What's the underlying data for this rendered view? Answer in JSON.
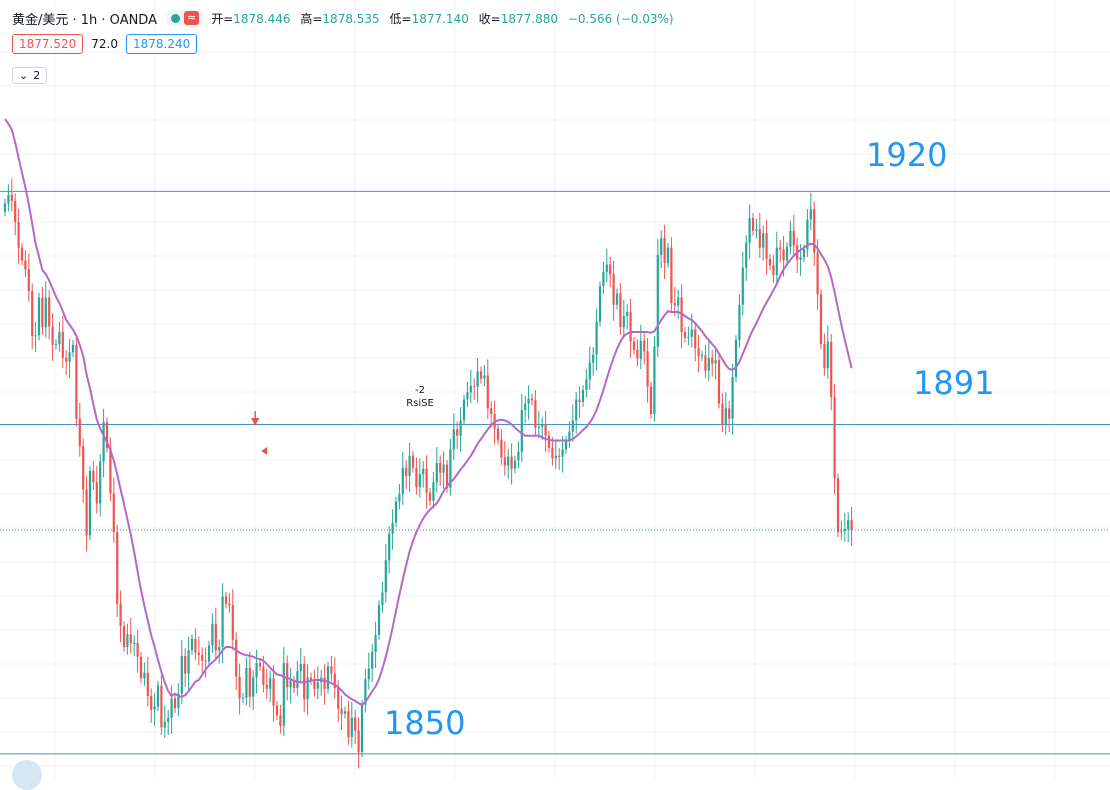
{
  "header": {
    "title": "黄金/美元 · 1h · OANDA",
    "ohlc": [
      {
        "key": "开=",
        "value": "1878.446"
      },
      {
        "key": "高=",
        "value": "1878.535"
      },
      {
        "key": "低=",
        "value": "1877.140"
      },
      {
        "key": "收=",
        "value": "1877.880"
      }
    ],
    "change": "−0.566 (−0.03%)",
    "bid": "1877.520",
    "spread": "72.0",
    "ask": "1878.240",
    "indicator_count": "2",
    "status_icon": "market-open-dot",
    "wave_icon": "≈"
  },
  "colors": {
    "up": "#26a69a",
    "down": "#ef5350",
    "ma": "#b667c9",
    "level": "#2196f3",
    "current_price_line": "#26a69a"
  },
  "chart_data": {
    "type": "candlestick",
    "symbol": "XAU/USD",
    "timeframe": "1h",
    "source": "OANDA",
    "y_range": [
      1847,
      1932
    ],
    "levels": [
      {
        "value": 1920,
        "label": "1920"
      },
      {
        "value": 1891,
        "label": "1891"
      },
      {
        "value": 1850,
        "label": "1850"
      }
    ],
    "current_price": 1877.88,
    "signal": {
      "index": 73,
      "text1": "-2",
      "text2": "RsiSE"
    },
    "candles_close": [
      1918.5,
      1919.6,
      1918.8,
      1916.2,
      1913.0,
      1911.4,
      1910.3,
      1907.6,
      1902.0,
      1902.1,
      1906.8,
      1903.1,
      1906.8,
      1903.2,
      1900.9,
      1901.0,
      1902.5,
      1899.3,
      1898.8,
      1900.0,
      1900.9,
      1891.7,
      1888.3,
      1882.9,
      1877.2,
      1885.2,
      1883.8,
      1881.2,
      1886.4,
      1891.3,
      1888.1,
      1882.4,
      1877.6,
      1868.7,
      1865.9,
      1863.3,
      1864.9,
      1863.8,
      1863.8,
      1862.1,
      1859.4,
      1860.1,
      1857.2,
      1855.5,
      1855.9,
      1858.5,
      1853.3,
      1854.0,
      1854.5,
      1856.9,
      1855.7,
      1857.5,
      1862.2,
      1860.0,
      1862.9,
      1864.3,
      1862.6,
      1862.3,
      1861.6,
      1861.5,
      1863.5,
      1866.2,
      1862.9,
      1863.3,
      1869.6,
      1868.7,
      1868.5,
      1864.2,
      1859.6,
      1856.9,
      1857.0,
      1860.7,
      1857.1,
      1859.5,
      1861.3,
      1860.9,
      1858.6,
      1858.1,
      1859.4,
      1856.0,
      1854.8,
      1853.5,
      1861.3,
      1858.3,
      1859.1,
      1858.2,
      1860.3,
      1861.2,
      1856.8,
      1859.5,
      1859.2,
      1858.1,
      1858.9,
      1859.5,
      1858.1,
      1860.9,
      1860.0,
      1858.2,
      1855.6,
      1855.0,
      1855.3,
      1852.1,
      1854.5,
      1852.9,
      1850.2,
      1856.1,
      1859.3,
      1860.6,
      1862.7,
      1864.8,
      1868.5,
      1870.1,
      1874.1,
      1877.4,
      1878.8,
      1881.4,
      1882.3,
      1885.6,
      1884.6,
      1887.1,
      1885.6,
      1883.2,
      1884.8,
      1885.5,
      1882.5,
      1881.5,
      1883.8,
      1886.2,
      1885.0,
      1886.0,
      1883.1,
      1887.9,
      1890.4,
      1889.6,
      1891.5,
      1894.1,
      1895.0,
      1895.8,
      1895.7,
      1897.6,
      1896.7,
      1897.1,
      1893.0,
      1892.3,
      1890.5,
      1889.1,
      1886.9,
      1885.9,
      1887.0,
      1885.5,
      1886.5,
      1887.6,
      1892.8,
      1893.6,
      1894.2,
      1894.0,
      1890.6,
      1890.7,
      1891.0,
      1889.6,
      1888.1,
      1886.8,
      1887.1,
      1887.0,
      1887.9,
      1889.0,
      1890.1,
      1891.5,
      1894.1,
      1893.8,
      1895.3,
      1896.6,
      1898.7,
      1899.7,
      1903.8,
      1908.2,
      1910.0,
      1910.9,
      1909.7,
      1905.9,
      1907.3,
      1903.1,
      1904.5,
      1905.0,
      1901.3,
      1900.3,
      1899.2,
      1901.4,
      1900.1,
      1895.7,
      1892.3,
      1900.7,
      1912.1,
      1914.2,
      1911.1,
      1913.0,
      1906.1,
      1905.8,
      1906.8,
      1902.5,
      1901.8,
      1901.9,
      1902.8,
      1900.5,
      1899.5,
      1899.6,
      1897.7,
      1899.3,
      1898.6,
      1899.0,
      1893.6,
      1891.0,
      1893.0,
      1891.7,
      1896.9,
      1901.5,
      1905.9,
      1910.5,
      1913.6,
      1916.7,
      1915.1,
      1915.3,
      1913.0,
      1914.8,
      1911.6,
      1910.8,
      1909.6,
      1913.0,
      1912.8,
      1911.4,
      1913.1,
      1915.1,
      1913.3,
      1911.5,
      1911.8,
      1912.8,
      1916.5,
      1917.8,
      1912.4,
      1907.2,
      1901.0,
      1898.0,
      1901.3,
      1894.4,
      1884.3,
      1877.6,
      1877.7,
      1878.0,
      1879.1,
      1877.9
    ],
    "ma_series": [
      1929.0,
      1928.4,
      1927.7,
      1926.1,
      1924.2,
      1922.3,
      1920.5,
      1918.4,
      1916.0,
      1913.5,
      1911.9,
      1910.2,
      1909.7,
      1908.9,
      1907.9,
      1906.9,
      1906.1,
      1905.1,
      1904.0,
      1903.4,
      1902.8,
      1902.0,
      1900.9,
      1899.5,
      1897.2,
      1895.5,
      1893.5,
      1891.6,
      1890.5,
      1889.6,
      1888.8,
      1887.8,
      1886.5,
      1884.8,
      1882.9,
      1881.1,
      1879.2,
      1877.3,
      1875.1,
      1872.7,
      1870.4,
      1868.4,
      1866.6,
      1864.8,
      1863.3,
      1861.7,
      1860.2,
      1858.9,
      1857.8,
      1857.2,
      1857.5,
      1857.2,
      1857.1,
      1857.3,
      1857.8,
      1858.4,
      1859.0,
      1859.2,
      1859.8,
      1860.5,
      1861.0,
      1861.4,
      1861.8,
      1862.3,
      1862.9,
      1863.3,
      1863.3,
      1863.2,
      1862.9,
      1862.6,
      1862.4,
      1862.3,
      1862.2,
      1862.1,
      1861.9,
      1861.8,
      1861.6,
      1861.2,
      1860.7,
      1860.3,
      1859.9,
      1859.8,
      1859.6,
      1859.5,
      1859.3,
      1859.1,
      1859.0,
      1858.9,
      1858.9,
      1859.0,
      1859.1,
      1859.2,
      1859.2,
      1859.2,
      1859.1,
      1859.0,
      1858.8,
      1858.6,
      1858.3,
      1857.9,
      1857.4,
      1857.1,
      1856.8,
      1856.6,
      1856.3,
      1856.1,
      1856.5,
      1857.1,
      1857.8,
      1858.4,
      1859.3,
      1860.6,
      1862.1,
      1863.8,
      1865.7,
      1867.8,
      1869.8,
      1871.7,
      1873.5,
      1875.2,
      1876.5,
      1877.6,
      1878.5,
      1879.3,
      1879.9,
      1880.4,
      1880.8,
      1881.2,
      1881.9,
      1882.7,
      1883.3,
      1883.8,
      1884.2,
      1884.8,
      1885.4,
      1885.9,
      1886.5,
      1887.1,
      1887.8,
      1888.6,
      1889.2,
      1889.8,
      1890.4,
      1890.9,
      1891.3,
      1891.5,
      1891.6,
      1891.5,
      1891.3,
      1891.0,
      1890.6,
      1890.2,
      1889.9,
      1889.6,
      1889.6,
      1889.6,
      1889.6,
      1889.6,
      1889.4,
      1889.2,
      1889.1,
      1889.0,
      1889.0,
      1889.0,
      1889.0,
      1889.0,
      1889.0,
      1889.2,
      1889.5,
      1889.9,
      1890.3,
      1890.7,
      1891.2,
      1891.9,
      1892.8,
      1894.0,
      1895.3,
      1896.7,
      1898.1,
      1899.3,
      1900.4,
      1901.3,
      1902.0,
      1902.3,
      1902.5,
      1902.5,
      1902.5,
      1902.5,
      1902.5,
      1902.5,
      1902.4,
      1902.6,
      1903.3,
      1904.0,
      1904.6,
      1905.1,
      1905.0,
      1905.0,
      1905.0,
      1904.8,
      1904.5,
      1904.2,
      1904.0,
      1903.6,
      1903.1,
      1902.6,
      1902.0,
      1901.5,
      1901.0,
      1900.5,
      1899.8,
      1899.1,
      1898.4,
      1897.9,
      1897.8,
      1898.1,
      1898.8,
      1899.8,
      1900.8,
      1901.9,
      1902.8,
      1903.6,
      1904.5,
      1905.4,
      1906.2,
      1906.9,
      1907.7,
      1908.5,
      1909.5,
      1910.3,
      1910.9,
      1911.5,
      1912.0,
      1912.4,
      1912.7,
      1913.0,
      1913.3,
      1913.5,
      1913.4,
      1912.9,
      1912.2,
      1911.5,
      1910.7,
      1909.3,
      1907.5,
      1905.4,
      1903.4,
      1901.5,
      1899.8,
      1898.0
    ]
  }
}
